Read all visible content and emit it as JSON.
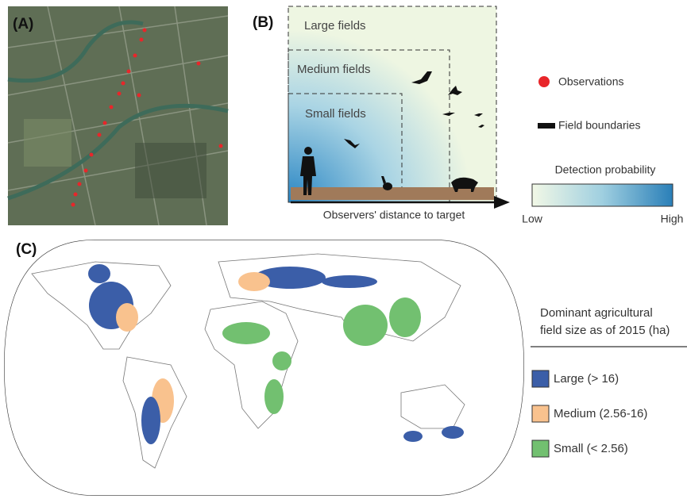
{
  "panel_a": {
    "label": "(A)"
  },
  "panel_b": {
    "label": "(B)",
    "zones": [
      "Large fields",
      "Medium fields",
      "Small fields"
    ],
    "x_axis_label": "Observers' distance to target"
  },
  "legend_top": {
    "observations": "Observations",
    "field_boundaries": "Field boundaries",
    "detection_title": "Detection probability",
    "low": "Low",
    "high": "High"
  },
  "panel_c": {
    "label": "(C)",
    "legend_title": [
      "Dominant agricultural",
      "field size as of 2015 (ha)"
    ],
    "classes": [
      {
        "name": "Large (> 16)",
        "color": "#3b5ea8"
      },
      {
        "name": "Medium (2.56-16)",
        "color": "#f9c28e"
      },
      {
        "name": "Small (< 2.56)",
        "color": "#72c070"
      }
    ]
  }
}
